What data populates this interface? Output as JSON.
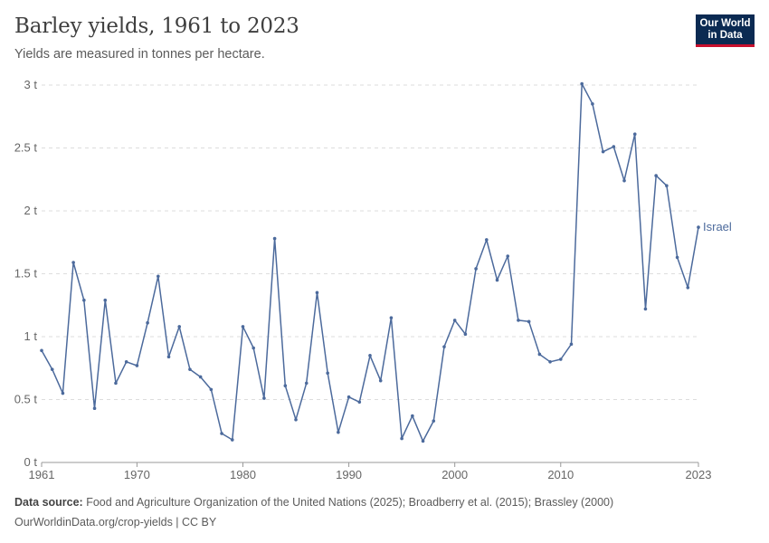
{
  "header": {
    "title": "Barley yields, 1961 to 2023",
    "subtitle": "Yields are measured in tonnes per hectare."
  },
  "logo": {
    "line1": "Our World",
    "line2": "in Data"
  },
  "footer": {
    "source_label": "Data source:",
    "source_text": "Food and Agriculture Organization of the United Nations (2025); Broadberry et al. (2015); Brassley (2000)",
    "url_license": "OurWorldinData.org/crop-yields | CC BY"
  },
  "colors": {
    "series": "#4c6a9c",
    "grid": "#dddddd",
    "logo_bg": "#0b2a52",
    "logo_accent": "#c8102e"
  },
  "chart_data": {
    "type": "line",
    "title": "Barley yields, 1961 to 2023",
    "subtitle": "Yields are measured in tonnes per hectare.",
    "xlim": [
      1961,
      2023
    ],
    "ylim": [
      0,
      3
    ],
    "y_ticks": [
      0,
      0.5,
      1,
      1.5,
      2,
      2.5,
      3
    ],
    "y_tick_labels": [
      "0 t",
      "0.5 t",
      "1 t",
      "1.5 t",
      "2 t",
      "2.5 t",
      "3 t"
    ],
    "x_ticks": [
      1961,
      1970,
      1980,
      1990,
      2000,
      2010,
      2023
    ],
    "x_tick_labels": [
      "1961",
      "1970",
      "1980",
      "1990",
      "2000",
      "2010",
      "2023"
    ],
    "grid": "horizontal dashed",
    "legend": "inline label at line end",
    "series": [
      {
        "name": "Israel",
        "x": [
          1961,
          1962,
          1963,
          1964,
          1965,
          1966,
          1967,
          1968,
          1969,
          1970,
          1971,
          1972,
          1973,
          1974,
          1975,
          1976,
          1977,
          1978,
          1979,
          1980,
          1981,
          1982,
          1983,
          1984,
          1985,
          1986,
          1987,
          1988,
          1989,
          1990,
          1991,
          1992,
          1993,
          1994,
          1995,
          1996,
          1997,
          1998,
          1999,
          2000,
          2001,
          2002,
          2003,
          2004,
          2005,
          2006,
          2007,
          2008,
          2009,
          2010,
          2011,
          2012,
          2013,
          2014,
          2015,
          2016,
          2017,
          2018,
          2019,
          2020,
          2021,
          2022,
          2023
        ],
        "values": [
          0.89,
          0.74,
          0.55,
          1.59,
          1.29,
          0.43,
          1.29,
          0.63,
          0.8,
          0.77,
          1.11,
          1.48,
          0.84,
          1.08,
          0.74,
          0.68,
          0.58,
          0.23,
          0.18,
          1.08,
          0.91,
          0.51,
          1.78,
          0.61,
          0.34,
          0.63,
          1.35,
          0.71,
          0.24,
          0.52,
          0.48,
          0.85,
          0.65,
          1.15,
          0.19,
          0.37,
          0.17,
          0.33,
          0.92,
          1.13,
          1.02,
          1.54,
          1.77,
          1.45,
          1.64,
          1.13,
          1.12,
          0.86,
          0.8,
          0.82,
          0.94,
          3.01,
          2.85,
          2.47,
          2.51,
          2.24,
          2.61,
          1.22,
          2.28,
          2.2,
          1.63,
          1.39,
          1.87
        ]
      }
    ]
  }
}
